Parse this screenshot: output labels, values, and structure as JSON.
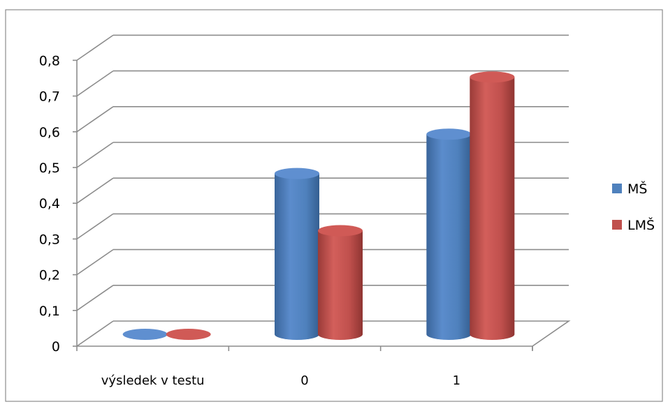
{
  "chart_data": {
    "type": "bar",
    "style": "3d-cylinder",
    "categories": [
      "výsledek v testu",
      "0",
      "1"
    ],
    "series": [
      {
        "name": "MŠ",
        "color": "#4F81BD",
        "values": [
          0,
          0.45,
          0.56
        ]
      },
      {
        "name": "LMŠ",
        "color": "#C0504D",
        "values": [
          0,
          0.29,
          0.72
        ]
      }
    ],
    "yticks": [
      "0",
      "0,1",
      "0,2",
      "0,3",
      "0,4",
      "0,5",
      "0,6",
      "0,7",
      "0,8"
    ],
    "ylim": [
      0,
      0.8
    ],
    "grid": true,
    "legend_position": "right",
    "title": "",
    "xlabel": "",
    "ylabel": ""
  }
}
